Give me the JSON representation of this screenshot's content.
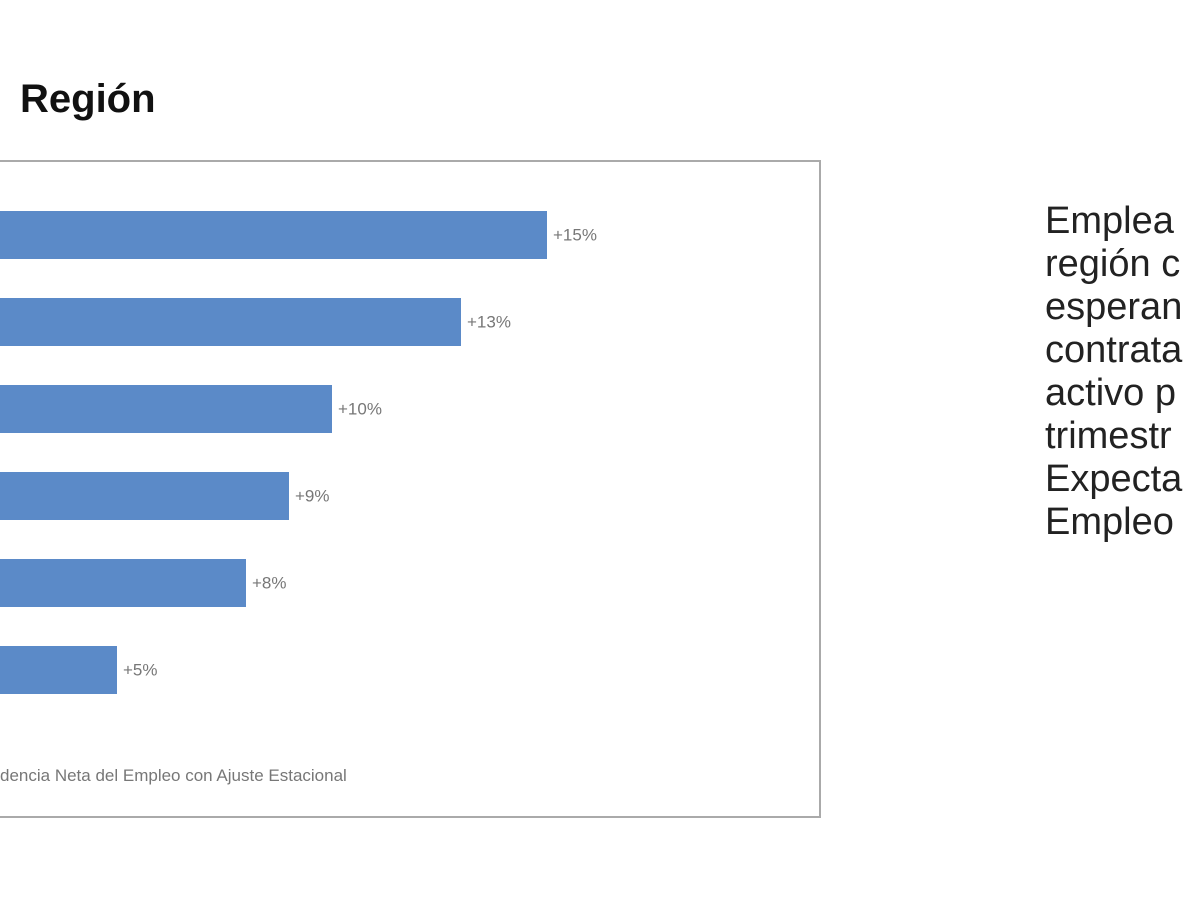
{
  "chart_data": {
    "type": "bar",
    "title": "Región",
    "values": [
      15,
      13,
      10,
      9,
      8,
      5
    ],
    "value_labels": [
      "+15%",
      "+13%",
      "+10%",
      "+9%",
      "+8%",
      "+5%"
    ],
    "color": "#5b8ac8",
    "footnote": "dencia Neta del Empleo con Ajuste Estacional"
  },
  "side_text": [
    "Emplea",
    "región c",
    "esperan",
    "contrata",
    "activo p",
    "trimestr",
    "Expecta",
    "Empleo"
  ]
}
